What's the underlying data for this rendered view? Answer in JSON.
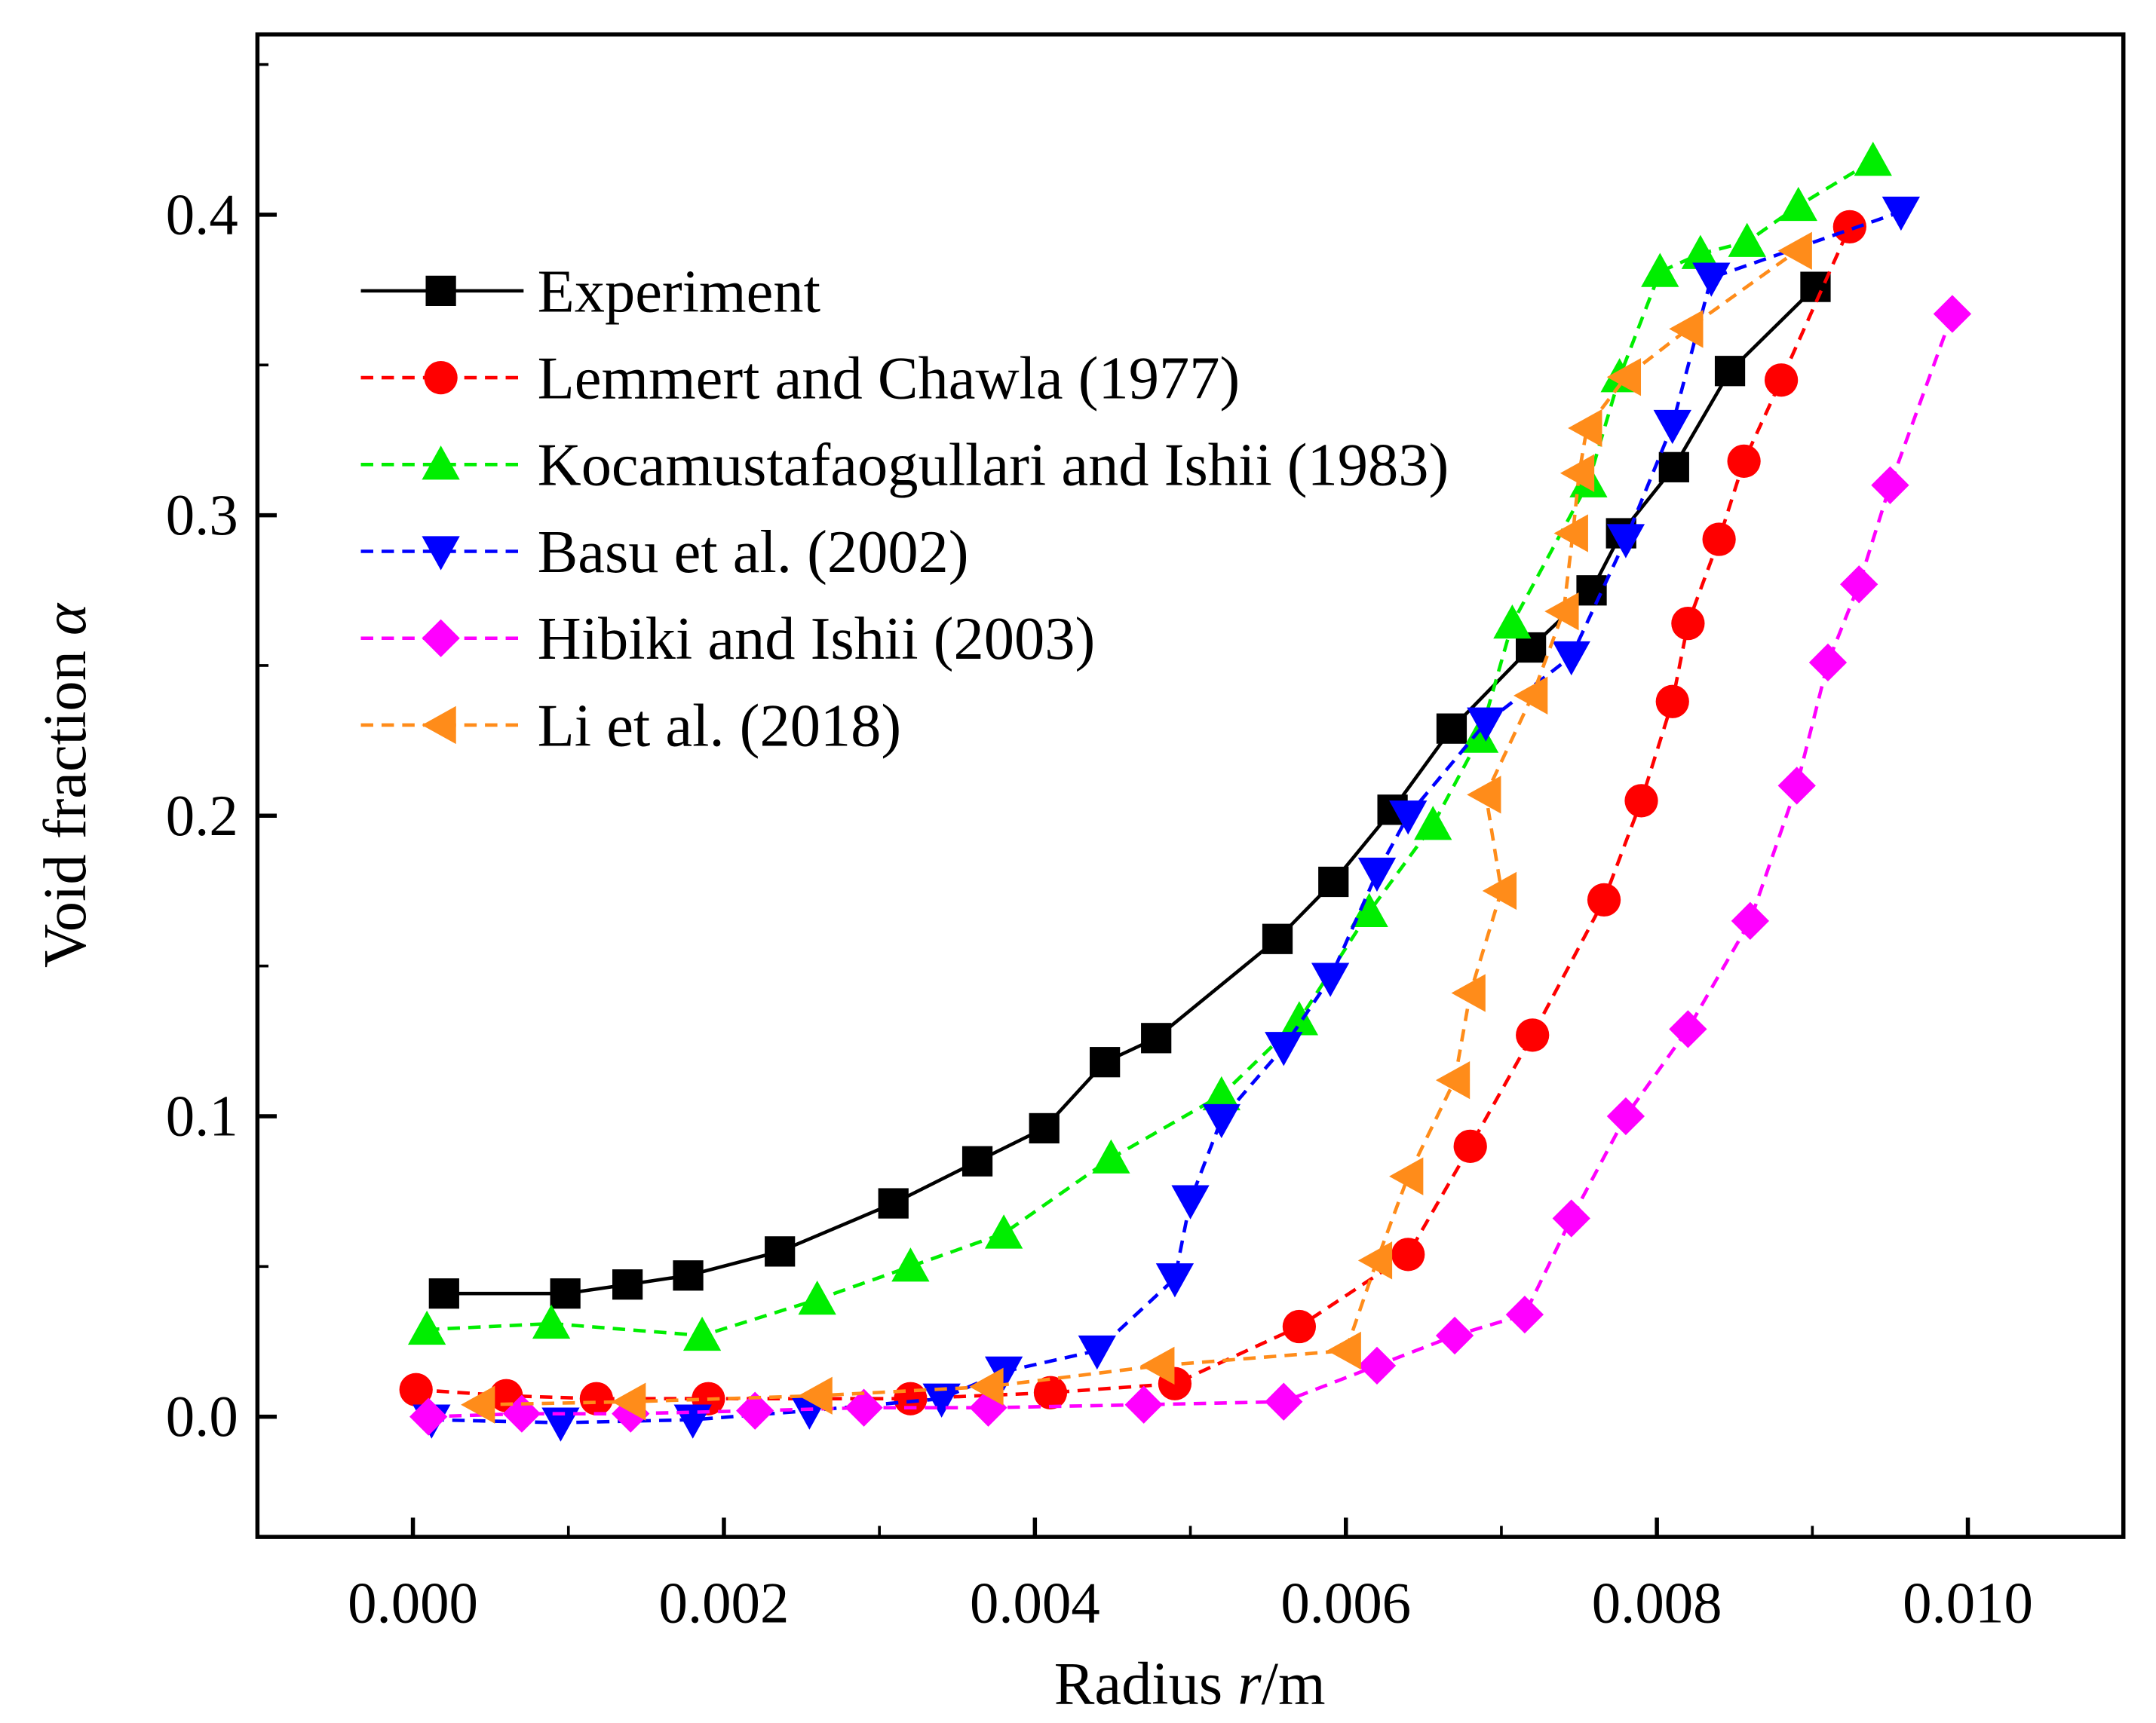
{
  "chart_data": {
    "type": "line",
    "title": "",
    "xlabel": "Radius r/m",
    "xlabel_parts": [
      "Radius ",
      "r",
      "/m"
    ],
    "ylabel": "Void fraction α",
    "ylabel_parts": [
      "Void fraction ",
      "α"
    ],
    "xlim": [
      -0.001,
      0.011
    ],
    "ylim": [
      -0.04,
      0.46
    ],
    "xticks": [
      0.0,
      0.002,
      0.004,
      0.006,
      0.008,
      0.01
    ],
    "xtick_labels": [
      "0.000",
      "0.002",
      "0.004",
      "0.006",
      "0.008",
      "0.010"
    ],
    "yticks": [
      0.0,
      0.1,
      0.2,
      0.3,
      0.4
    ],
    "ytick_labels": [
      "0.0",
      "0.1",
      "0.2",
      "0.3",
      "0.4"
    ],
    "grid": false,
    "legend_position": "top-left",
    "series": [
      {
        "name": "Experiment",
        "color": "#000000",
        "marker": "square",
        "dash": false,
        "x": [
          0.0002,
          0.00098,
          0.00138,
          0.00177,
          0.00236,
          0.00309,
          0.00363,
          0.00406,
          0.00445,
          0.00478,
          0.00556,
          0.00592,
          0.0063,
          0.00668,
          0.00719,
          0.00758,
          0.00777,
          0.00811,
          0.00847,
          0.00902
        ],
        "y": [
          0.041,
          0.041,
          0.044,
          0.047,
          0.055,
          0.071,
          0.085,
          0.096,
          0.118,
          0.126,
          0.159,
          0.178,
          0.202,
          0.229,
          0.256,
          0.275,
          0.294,
          0.316,
          0.348,
          0.376
        ]
      },
      {
        "name": "Lemmert and Chawla (1977)",
        "color": "#ff0000",
        "marker": "circle",
        "dash": true,
        "x": [
          2e-05,
          0.0006,
          0.00118,
          0.0019,
          0.0032,
          0.0041,
          0.0049,
          0.0057,
          0.0064,
          0.0068,
          0.0072,
          0.00766,
          0.0079,
          0.0081,
          0.0082,
          0.0084,
          0.00856,
          0.0088,
          0.00924
        ],
        "y": [
          0.009,
          0.007,
          0.006,
          0.006,
          0.006,
          0.008,
          0.011,
          0.03,
          0.054,
          0.09,
          0.127,
          0.172,
          0.205,
          0.238,
          0.264,
          0.292,
          0.318,
          0.345,
          0.396
        ]
      },
      {
        "name": "Kocamustafaogullari and Ishii (1983)",
        "color": "#00ee00",
        "marker": "triangle-up",
        "dash": true,
        "x": [
          9e-05,
          0.00089,
          0.00186,
          0.0026,
          0.0032,
          0.0038,
          0.00449,
          0.0052,
          0.0057,
          0.00615,
          0.00656,
          0.00686,
          0.00707,
          0.00756,
          0.00776,
          0.00802,
          0.00828,
          0.00858,
          0.00891,
          0.00939
        ],
        "y": [
          0.029,
          0.031,
          0.027,
          0.039,
          0.05,
          0.061,
          0.086,
          0.107,
          0.132,
          0.168,
          0.197,
          0.226,
          0.264,
          0.311,
          0.346,
          0.381,
          0.387,
          0.391,
          0.403,
          0.418
        ]
      },
      {
        "name": "Basu et al. (2002)",
        "color": "#0000ff",
        "marker": "triangle-down",
        "dash": true,
        "x": [
          0.00012,
          0.00095,
          0.0018,
          0.00255,
          0.0034,
          0.0038,
          0.0044,
          0.0049,
          0.005,
          0.0052,
          0.0056,
          0.0059,
          0.0062,
          0.0064,
          0.0069,
          0.00745,
          0.0078,
          0.0081,
          0.00835,
          0.00957
        ],
        "y": [
          -0.001,
          -0.002,
          -0.001,
          0.002,
          0.006,
          0.015,
          0.022,
          0.046,
          0.072,
          0.099,
          0.123,
          0.146,
          0.181,
          0.2,
          0.231,
          0.253,
          0.292,
          0.33,
          0.379,
          0.401
        ]
      },
      {
        "name": "Hibiki and Ishii (2003)",
        "color": "#ff00ff",
        "marker": "diamond",
        "dash": true,
        "x": [
          0.0001,
          0.0007,
          0.0014,
          0.0022,
          0.0029,
          0.0037,
          0.0047,
          0.0056,
          0.0062,
          0.0067,
          0.00715,
          0.00745,
          0.0078,
          0.0082,
          0.0086,
          0.0089,
          0.0091,
          0.0093,
          0.0095,
          0.0099
        ],
        "y": [
          0.0,
          0.001,
          0.001,
          0.002,
          0.003,
          0.003,
          0.004,
          0.005,
          0.017,
          0.027,
          0.034,
          0.066,
          0.1,
          0.129,
          0.165,
          0.21,
          0.251,
          0.277,
          0.31,
          0.367
        ]
      },
      {
        "name": "Li et al. (2018)",
        "color": "#ff8c1a",
        "marker": "triangle-left",
        "dash": true,
        "x": [
          0.00043,
          0.0014,
          0.0026,
          0.0037,
          0.0048,
          0.006,
          0.0062,
          0.0064,
          0.0067,
          0.0068,
          0.007,
          0.0069,
          0.0072,
          0.0074,
          0.00746,
          0.0075,
          0.00755,
          0.0078,
          0.0082,
          0.0089
        ],
        "y": [
          0.004,
          0.005,
          0.007,
          0.01,
          0.017,
          0.022,
          0.052,
          0.08,
          0.112,
          0.141,
          0.175,
          0.207,
          0.24,
          0.268,
          0.294,
          0.314,
          0.329,
          0.346,
          0.362,
          0.388
        ]
      }
    ]
  }
}
